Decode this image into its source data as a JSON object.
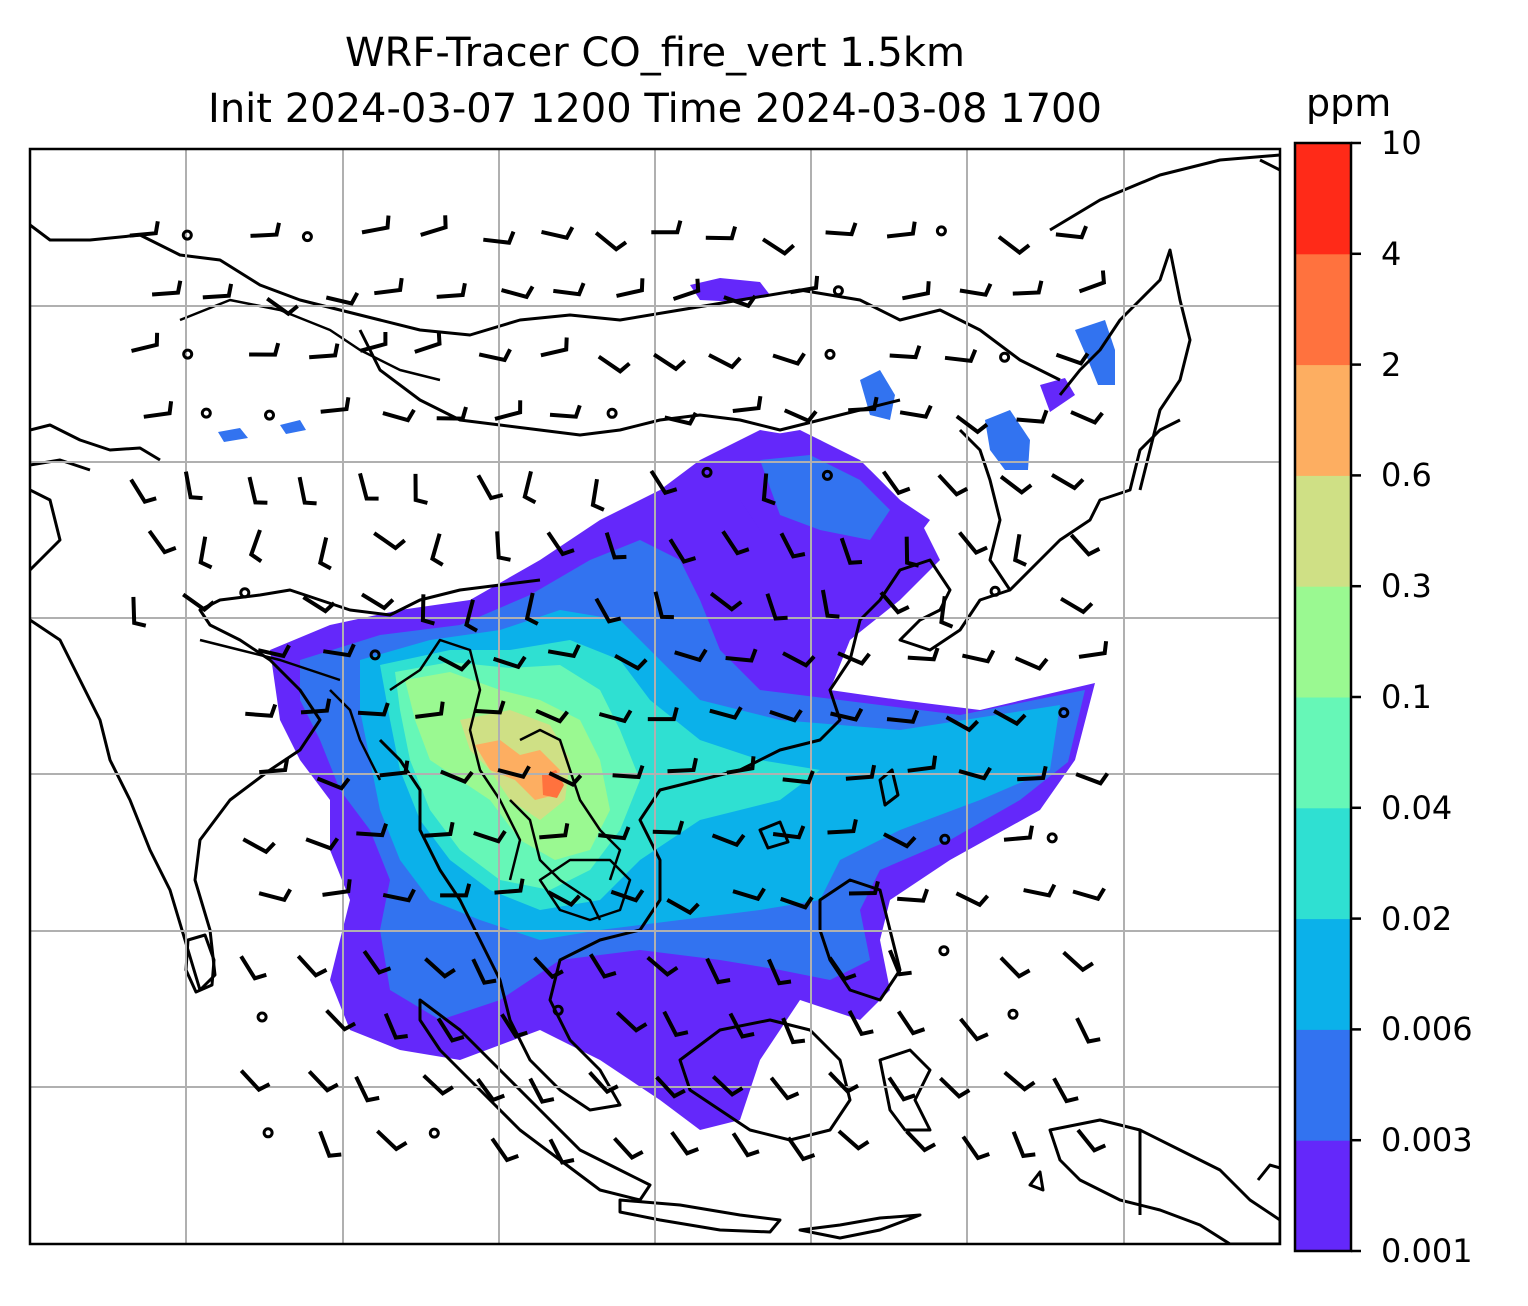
{
  "title": {
    "line1": "WRF-Tracer CO_fire_vert 1.5km",
    "line2": "Init 2024-03-07 1200 Time 2024-03-08 1700"
  },
  "colorbar": {
    "unit": "ppm",
    "levels": [
      "0.001",
      "0.003",
      "0.006",
      "0.02",
      "0.04",
      "0.1",
      "0.3",
      "0.6",
      "2",
      "4",
      "10"
    ],
    "colors": [
      "#6428fa",
      "#3273f0",
      "#0bb1ea",
      "#2fe0d2",
      "#66f7b7",
      "#9af991",
      "#cfe085",
      "#fdae61",
      "#ff723e",
      "#ff2a18"
    ]
  },
  "map": {
    "gridlines": true,
    "coastline_color": "#000000",
    "grid_color": "#b0b0b0",
    "wind_barbs": true,
    "calm_marker": "circle"
  }
}
